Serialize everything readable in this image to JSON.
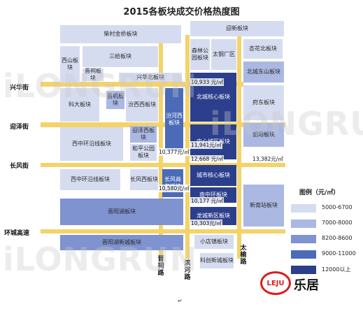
{
  "title": "2015各板块成交价格热度图",
  "colors": {
    "level1": "#d6dcf0",
    "level2": "#aab8e2",
    "level3": "#7e93cf",
    "level4": "#4b6bb8",
    "level5": "#2c3f8c",
    "road": "#f3d36a"
  },
  "blocks": {
    "chaiyuan": "柴村金桥板块",
    "yingze_north": "迎新板块",
    "xishan": "西山板块",
    "sanjiao": "三给板块",
    "senlin": "森林公园板块",
    "taigang": "太钢厂区",
    "xinghuabei": "杏花北板块",
    "jinci": "晋祠板块",
    "xinghua_north": "兴华北板块",
    "beicheng_east": "北城东山板块",
    "beicheng_core": "北城核心板块",
    "kedas": "科大板块",
    "jinji": "晋机板块",
    "fenxi_west": "汾西西板块",
    "fenhe_west": "汾河西板块",
    "fudong": "府东板块",
    "center_core": "中心城区板块",
    "zhaoyang": "朝阳板块",
    "xizhonghuan": "西中环沿线板块",
    "yingze_west": "迎泽西板块",
    "heping_west": "和平公园板块",
    "changfeng_west": "长风西板块",
    "changfeng_business": "长风商务板块",
    "city_core": "城市核心板块",
    "xizhonghuan2": "西中环沿线板块",
    "nanzhongzhan": "南中环板块",
    "xinnan": "新南站板块",
    "jinyanghu": "晋阳湖板块",
    "longcheng": "龙城新区板块",
    "jinyanghu_new": "晋阳湖新城板块",
    "xiaodian": "小店镇板块",
    "kechuang": "科创新城板块"
  },
  "prices": {
    "p1": "10,933 元/㎡",
    "p2": "11,941元/㎡",
    "p3": "12,668 元/㎡",
    "p4": "13,382元/㎡",
    "p5": "10,377元/㎡",
    "p6": "10,580元/㎡",
    "p7": "10,177 元/㎡",
    "p8": "10,303元/㎡"
  },
  "roads": {
    "xinghua": "兴华街",
    "yingze": "迎泽街",
    "changfeng": "长风街",
    "huancheng": "环城高速",
    "jinci_road": "晋祠路",
    "binhe_road": "滨河路",
    "taiyu_road": "太榆路"
  },
  "legend": {
    "title": "图例（元/㎡）",
    "items": [
      {
        "label": "5000-6700",
        "color": "#d6dcf0"
      },
      {
        "label": "7000-8000",
        "color": "#aab8e2"
      },
      {
        "label": "8200-8600",
        "color": "#7e93cf"
      },
      {
        "label": "9000-11000",
        "color": "#4b6bb8"
      },
      {
        "label": "12000以上",
        "color": "#2c3f8c"
      }
    ]
  },
  "watermark": "iLONGRUN",
  "brand": {
    "logo": "LEJU",
    "name": "乐居"
  },
  "footmark": "↵"
}
